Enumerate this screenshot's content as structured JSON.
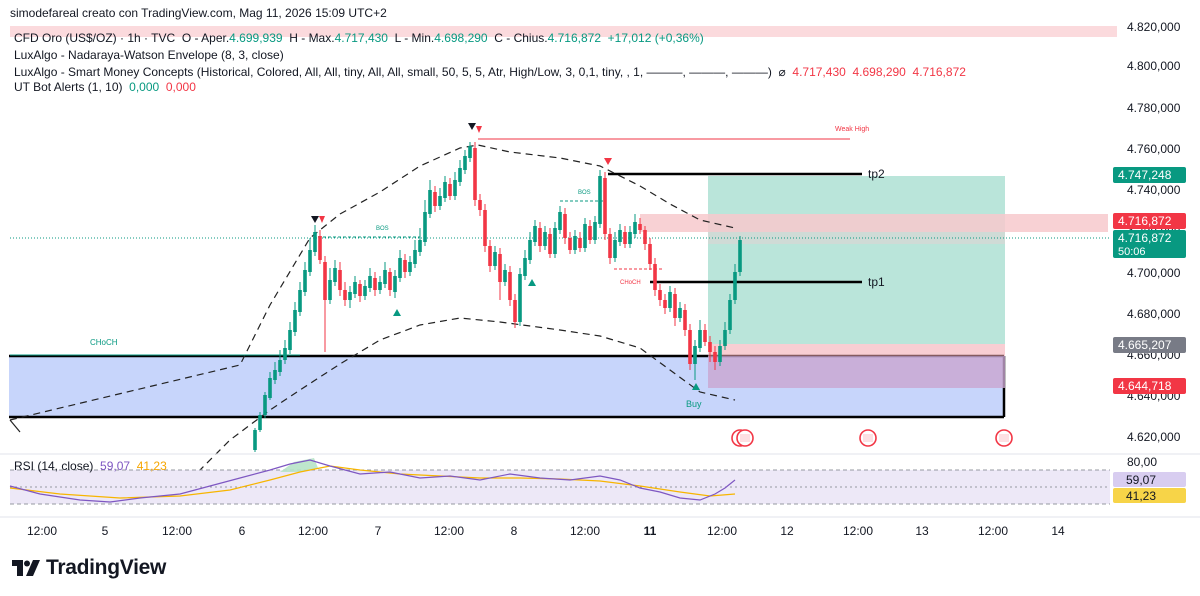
{
  "header": {
    "credit": "simodefareal creato con TradingView.com, Mag 11, 2026 15:09 UTC+2"
  },
  "symbol": {
    "name": "CFD Oro (US$/OZ) · 1h · TVC",
    "o_label": "O - Aper.",
    "o": "4.699,939",
    "h_label": "H - Max.",
    "h": "4.717,430",
    "l_label": "L - Min.",
    "l": "4.698,290",
    "c_label": "C - Chius.",
    "c": "4.716,872",
    "change": "+17,012 (+0,36%)"
  },
  "indicators": {
    "nw": "LuxAlgo - Nadaraya-Watson Envelope (8, 3, close)",
    "smc": "LuxAlgo - Smart Money Concepts (Historical, Colored, All, All, tiny, All, All, small, 50, 5, 5, Atr, High/Low, 3, 0,1, tiny, , 1, ———, ———, ———)",
    "smc_vals": [
      "4.717,430",
      "4.698,290",
      "4.716,872"
    ],
    "ut_name": "UT Bot Alerts (1, 10)",
    "ut_vals": [
      "0,000",
      "0,000"
    ],
    "rsi_name": "RSI (14, close)",
    "rsi_vals": [
      "59,07",
      "41,23"
    ]
  },
  "annotations": {
    "weak_high": "Weak High",
    "bos": "BOS",
    "choch": "CHoCH",
    "tp1": "tp1",
    "tp2": "tp2",
    "buy": "Buy"
  },
  "price_badges": {
    "tp2": "4.747,248",
    "last_red": "4.716,872",
    "last": "4.716,872",
    "countdown": "50:06",
    "entry": "4.665,207",
    "stop": "4.644,718",
    "rsi": "59,07",
    "rsi_ma": "41,23"
  },
  "colors": {
    "up": "#089981",
    "down": "#f23645",
    "zone": "#c7d5fb",
    "tp_zone": "#a3dccd",
    "stop_zone": "#f7c9cd",
    "rsi": "#7e57c2",
    "rsi_ma": "#f7b500"
  },
  "chart_data": {
    "type": "candlestick",
    "timeframe": "1h",
    "y_axis": {
      "range": [
        4612000,
        4825000
      ],
      "ticks": [
        "4.820,000",
        "4.800,000",
        "4.780,000",
        "4.760,000",
        "4.740,000",
        "4.720,000",
        "4.700,000",
        "4.680,000",
        "4.660,000",
        "4.640,000",
        "4.620,000"
      ]
    },
    "x_axis": {
      "ticks": [
        "12:00",
        "5",
        "12:00",
        "6",
        "12:00",
        "7",
        "12:00",
        "8",
        "12:00",
        "11",
        "12:00",
        "12",
        "12:00",
        "13",
        "12:00",
        "14"
      ]
    },
    "levels": {
      "tp2": 4747248,
      "tp1": 4695000,
      "entry": 4665207,
      "stop": 4644718,
      "weak_high": 4765000
    },
    "rsi": {
      "ticks": [
        "80,00"
      ],
      "value": 59.07,
      "ma": 41.23
    }
  }
}
